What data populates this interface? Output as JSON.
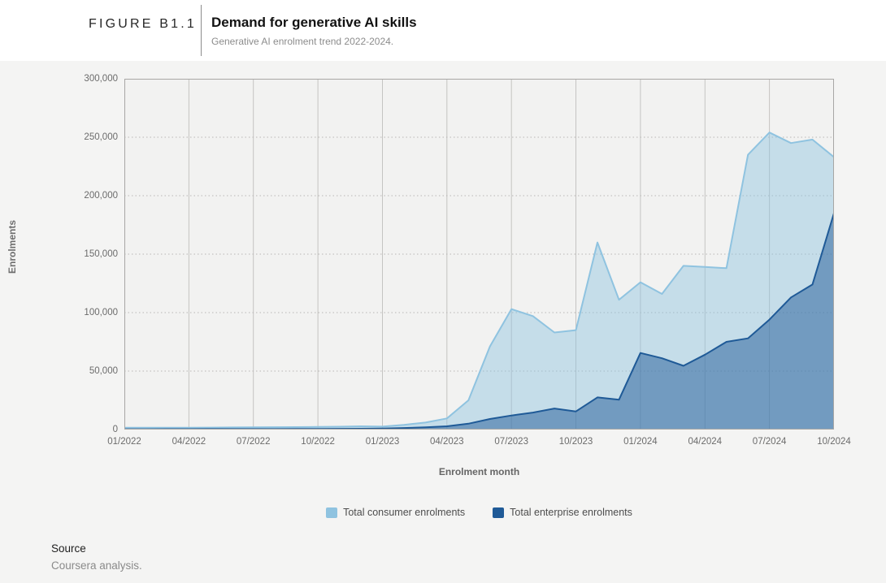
{
  "header": {
    "figure_label": "FIGURE B1.1",
    "title": "Demand for generative AI skills",
    "subtitle": "Generative AI enrolment trend 2022-2024."
  },
  "chart_data": {
    "type": "area",
    "title": "Demand for generative AI skills",
    "xlabel": "Enrolment month",
    "ylabel": "Enrolments",
    "ylim": [
      0,
      300000
    ],
    "grid": true,
    "legend_position": "bottom",
    "y_tick_labels": [
      "300,000",
      "250,000",
      "200,000",
      "150,000",
      "100,000",
      "50,000",
      "0"
    ],
    "x_tick_labels": [
      "01/2022",
      "04/2022",
      "07/2022",
      "10/2022",
      "01/2023",
      "04/2023",
      "07/2023",
      "10/2023",
      "01/2024",
      "04/2024",
      "07/2024",
      "10/2024"
    ],
    "x": [
      "01/2022",
      "02/2022",
      "03/2022",
      "04/2022",
      "05/2022",
      "06/2022",
      "07/2022",
      "08/2022",
      "09/2022",
      "10/2022",
      "11/2022",
      "12/2022",
      "01/2023",
      "02/2023",
      "03/2023",
      "04/2023",
      "05/2023",
      "06/2023",
      "07/2023",
      "08/2023",
      "09/2023",
      "10/2023",
      "11/2023",
      "12/2023",
      "01/2024",
      "02/2024",
      "03/2024",
      "04/2024",
      "05/2024",
      "06/2024",
      "07/2024",
      "08/2024",
      "09/2024",
      "10/2024"
    ],
    "series": [
      {
        "name": "Total consumer enrolments",
        "line_color": "#8fc3e0",
        "fill_color": "rgba(143,195,224,0.45)",
        "values": [
          1500,
          1500,
          1600,
          1600,
          1700,
          1800,
          1900,
          2000,
          2100,
          2200,
          2400,
          2800,
          2500,
          4000,
          6000,
          9500,
          25000,
          71000,
          103000,
          97000,
          83000,
          85000,
          160000,
          111000,
          126000,
          116000,
          140000,
          139000,
          138000,
          235000,
          254000,
          245000,
          248000,
          233000
        ]
      },
      {
        "name": "Total enterprise enrolments",
        "line_color": "#1f5a97",
        "fill_color": "rgba(31,90,151,0.5)",
        "values": [
          300,
          300,
          350,
          350,
          400,
          400,
          450,
          450,
          500,
          500,
          600,
          700,
          900,
          1300,
          1900,
          2800,
          5000,
          9000,
          12000,
          14500,
          18000,
          15500,
          27500,
          25500,
          65500,
          61000,
          54500,
          64000,
          75000,
          78000,
          94000,
          113000,
          124000,
          185000
        ]
      }
    ]
  },
  "footer": {
    "source_label": "Source",
    "source_text": "Coursera analysis."
  }
}
